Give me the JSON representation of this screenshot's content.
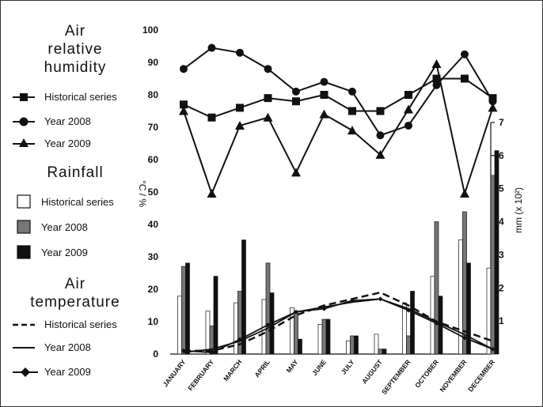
{
  "chart_data": {
    "type": "bar+line",
    "categories": [
      "JANUARY",
      "FEBRUARY",
      "MARCH",
      "APRIL",
      "MAY",
      "JUNE",
      "JULY",
      "AUGUST",
      "SEPTEMBER",
      "OCTOBER",
      "NOVEMBER",
      "DECEMBER"
    ],
    "left_axis": {
      "label": "°C / %",
      "ylim": [
        0,
        100
      ],
      "ticks": [
        0,
        10,
        20,
        30,
        40,
        50,
        60,
        70,
        80,
        90,
        100
      ]
    },
    "right_axis": {
      "label": "mm (x 10²)",
      "ylim": [
        0,
        7
      ],
      "ticks": [
        1,
        2,
        3,
        4,
        5,
        6,
        7
      ]
    },
    "humidity": {
      "title": [
        "Air",
        "relative",
        "humidity"
      ],
      "series": [
        {
          "name": "Historical series",
          "marker": "square",
          "values": [
            77,
            73,
            76,
            79,
            78,
            80,
            75,
            75,
            80,
            85,
            85,
            79
          ]
        },
        {
          "name": "Year 2008",
          "marker": "circle",
          "values": [
            88,
            94.5,
            93,
            88,
            81,
            84,
            81,
            67.5,
            70.5,
            83,
            92.5,
            78
          ]
        },
        {
          "name": "Year 2009",
          "marker": "triangle",
          "values": [
            75,
            49.5,
            70.5,
            73,
            56,
            74,
            69,
            61.5,
            75.5,
            89.5,
            49.5,
            76
          ]
        }
      ]
    },
    "rainfall": {
      "title": "Rainfall",
      "series": [
        {
          "name": "Historical series",
          "color": "#ffffff",
          "values": [
            1.75,
            1.3,
            1.55,
            1.65,
            1.4,
            0.9,
            0.4,
            0.6,
            1.55,
            2.35,
            3.45,
            2.6
          ]
        },
        {
          "name": "Year 2008",
          "color": "#777777",
          "values": [
            2.65,
            0.85,
            1.9,
            2.75,
            1.3,
            1.05,
            0.55,
            0.15,
            0.55,
            4.0,
            4.3,
            5.4
          ]
        },
        {
          "name": "Year 2009",
          "color": "#111111",
          "values": [
            2.75,
            2.35,
            3.45,
            1.85,
            0.45,
            1.05,
            0.55,
            0.15,
            1.9,
            1.75,
            2.75,
            6.15
          ]
        }
      ]
    },
    "temperature": {
      "title": [
        "Air",
        "temperature"
      ],
      "series": [
        {
          "name": "Historical series",
          "style": "dashed",
          "values": [
            1,
            1,
            3,
            7,
            12,
            15,
            17,
            19,
            15,
            10,
            7,
            4
          ]
        },
        {
          "name": "Year 2008",
          "style": "solid",
          "values": [
            0.5,
            1.5,
            4,
            8,
            13,
            14.5,
            16,
            17,
            14,
            10,
            6,
            1.5
          ]
        },
        {
          "name": "Year 2009",
          "style": "diamond",
          "values": [
            1,
            0.5,
            4.5,
            9,
            13,
            14,
            16.5,
            17,
            13.5,
            9.5,
            5,
            1.5
          ]
        }
      ]
    }
  }
}
